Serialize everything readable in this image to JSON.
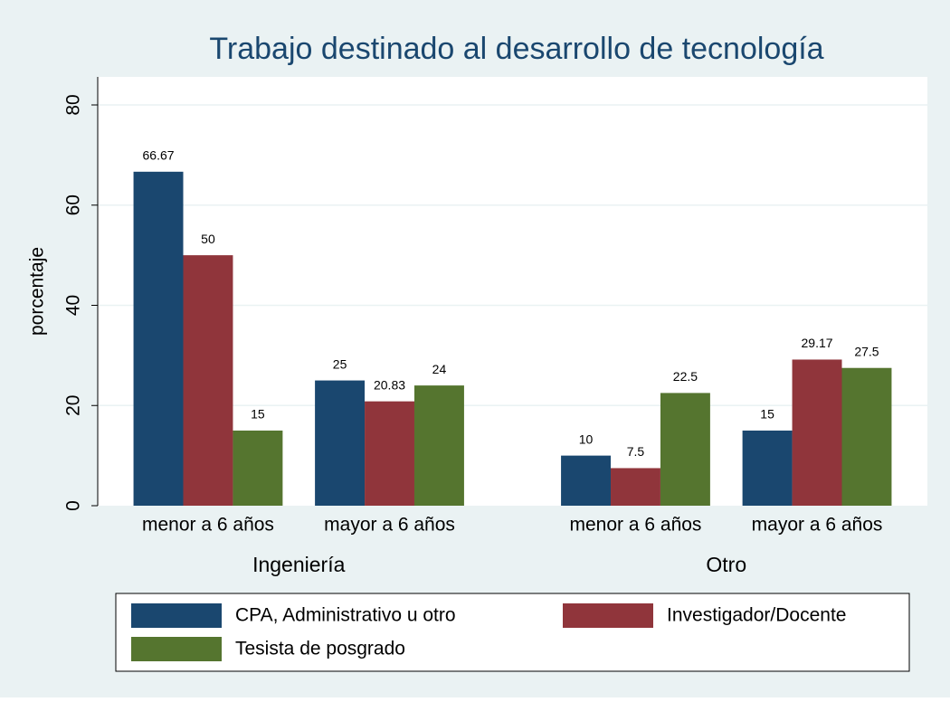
{
  "chart_data": {
    "type": "bar",
    "title": "Trabajo destinado al desarrollo de tecnología",
    "ylabel": "porcentaje",
    "groups": [
      "Ingeniería",
      "Otro"
    ],
    "categories": [
      "menor a 6 años",
      "mayor a 6 años",
      "menor a 6 años",
      "mayor a 6 años"
    ],
    "series": [
      {
        "name": "CPA, Administrativo u otro",
        "color": "#1a476f",
        "values": [
          66.67,
          25,
          10,
          15
        ]
      },
      {
        "name": "Investigador/Docente",
        "color": "#90353b",
        "values": [
          50,
          20.83,
          7.5,
          29.17
        ]
      },
      {
        "name": "Tesista de posgrado",
        "color": "#55752f",
        "values": [
          15,
          24,
          22.5,
          27.5
        ]
      }
    ],
    "ylim": [
      0,
      85.6
    ],
    "yticks": [
      0,
      20,
      40,
      60,
      80
    ],
    "grid": true
  }
}
